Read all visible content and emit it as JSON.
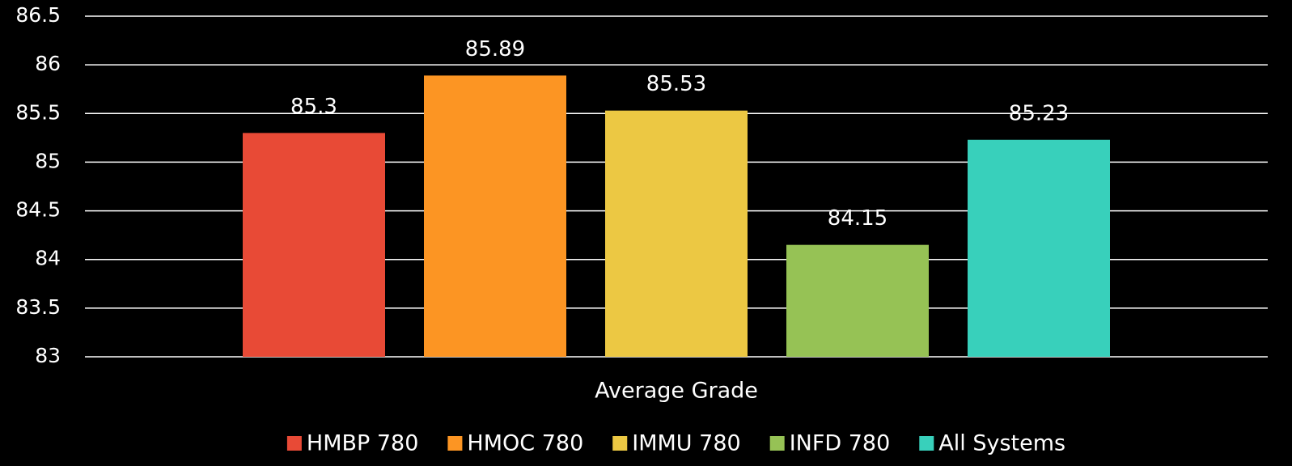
{
  "chart_data": {
    "type": "bar",
    "categories": [
      "Average Grade"
    ],
    "series": [
      {
        "name": "HMBP 780",
        "color": "#e84a36",
        "values": [
          85.3
        ]
      },
      {
        "name": "HMOC 780",
        "color": "#fc9523",
        "values": [
          85.89
        ]
      },
      {
        "name": "IMMU 780",
        "color": "#ecc843",
        "values": [
          85.53
        ]
      },
      {
        "name": "INFD 780",
        "color": "#96c255",
        "values": [
          84.15
        ]
      },
      {
        "name": "All Systems",
        "color": "#38d0bb",
        "values": [
          85.23
        ]
      }
    ],
    "ylim": [
      83,
      86.5
    ],
    "yticks": [
      83,
      83.5,
      84,
      84.5,
      85,
      85.5,
      86,
      86.5
    ],
    "grid": true,
    "legend": "bottom"
  }
}
